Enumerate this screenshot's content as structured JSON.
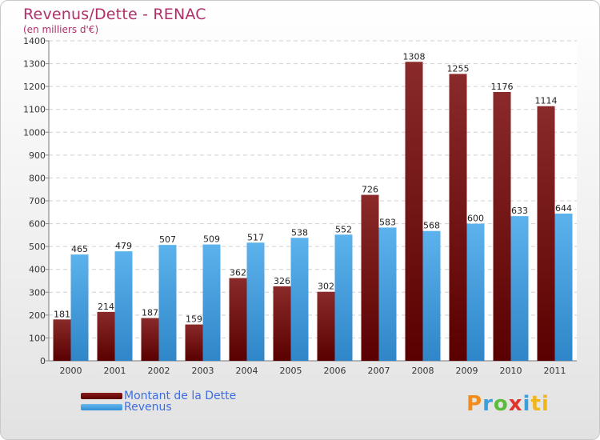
{
  "header": {
    "title": "Revenus/Dette - RENAC",
    "subtitle": "(en milliers d'€)"
  },
  "legend": {
    "dette_label": "Montant de la Dette",
    "revenus_label": "Revenus"
  },
  "logo": {
    "text": "Proxiti",
    "letters": [
      "P",
      "r",
      "o",
      "x",
      "i",
      "ti"
    ]
  },
  "colors": {
    "dette": "#7a1616",
    "revenus": "#4aa6e6",
    "title": "#b0306a",
    "legend_text": "#3d6de0"
  },
  "chart_data": {
    "type": "bar",
    "title": "Revenus/Dette - RENAC",
    "subtitle": "(en milliers d'€)",
    "categories": [
      "2000",
      "2001",
      "2002",
      "2003",
      "2004",
      "2005",
      "2006",
      "2007",
      "2008",
      "2009",
      "2010",
      "2011"
    ],
    "series": [
      {
        "name": "Montant de la Dette",
        "values": [
          181,
          214,
          187,
          159,
          362,
          326,
          302,
          726,
          1308,
          1255,
          1176,
          1114
        ]
      },
      {
        "name": "Revenus",
        "values": [
          465,
          479,
          507,
          509,
          517,
          538,
          552,
          583,
          568,
          600,
          633,
          644
        ]
      }
    ],
    "ylim": [
      0,
      1400
    ],
    "yticks": [
      0,
      100,
      200,
      300,
      400,
      500,
      600,
      700,
      800,
      900,
      1000,
      1100,
      1200,
      1300,
      1400
    ],
    "grid": true,
    "legend_position": "bottom-left"
  }
}
